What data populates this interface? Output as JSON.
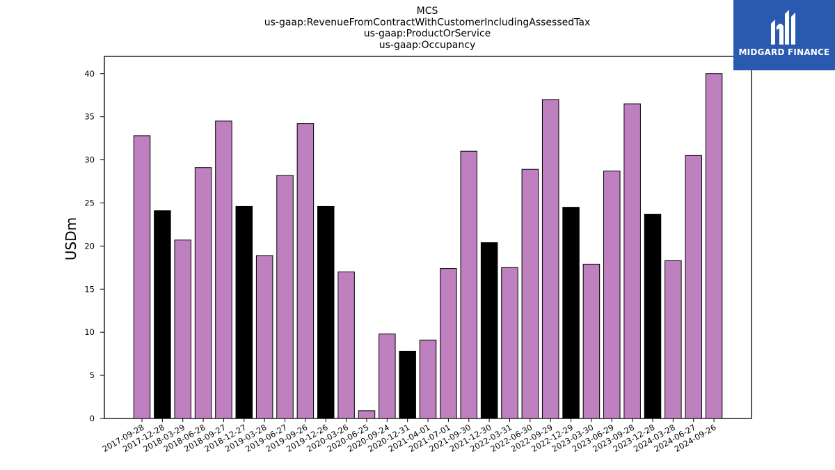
{
  "logo": {
    "name": "MIDGARD FINANCE",
    "icon": "midgard-logo-icon",
    "background": "#2a5ab0"
  },
  "chart_data": {
    "type": "bar",
    "title": [
      "MCS",
      "us-gaap:RevenueFromContractWithCustomerIncludingAssessedTax",
      "us-gaap:ProductOrService",
      "us-gaap:Occupancy"
    ],
    "xlabel": "",
    "ylabel": "USDm",
    "ylim": [
      0,
      42
    ],
    "yticks": [
      0,
      5,
      10,
      15,
      20,
      25,
      30,
      35,
      40
    ],
    "grid": false,
    "colors": {
      "default": "#bf80bf",
      "highlight": "#000000",
      "edge": "#000000"
    },
    "categories": [
      "2017-09-28",
      "2017-12-28",
      "2018-03-29",
      "2018-06-28",
      "2018-09-27",
      "2018-12-27",
      "2019-03-28",
      "2019-06-27",
      "2019-09-26",
      "2019-12-26",
      "2020-03-26",
      "2020-06-25",
      "2020-09-24",
      "2020-12-31",
      "2021-04-01",
      "2021-07-01",
      "2021-09-30",
      "2021-12-30",
      "2022-03-31",
      "2022-06-30",
      "2022-09-29",
      "2022-12-29",
      "2023-03-30",
      "2023-06-29",
      "2023-09-28",
      "2023-12-28",
      "2024-03-28",
      "2024-06-27",
      "2024-09-26"
    ],
    "values": [
      32.8,
      24.1,
      20.7,
      29.1,
      34.5,
      24.6,
      18.9,
      28.2,
      34.2,
      24.6,
      17.0,
      0.9,
      9.8,
      7.8,
      9.1,
      17.4,
      31.0,
      20.4,
      17.5,
      28.9,
      37.0,
      24.5,
      17.9,
      28.7,
      36.5,
      23.7,
      18.3,
      30.5,
      40.0
    ],
    "highlight": [
      false,
      true,
      false,
      false,
      false,
      true,
      false,
      false,
      false,
      true,
      false,
      false,
      false,
      true,
      false,
      false,
      false,
      true,
      false,
      false,
      false,
      true,
      false,
      false,
      false,
      true,
      false,
      false,
      false
    ]
  }
}
